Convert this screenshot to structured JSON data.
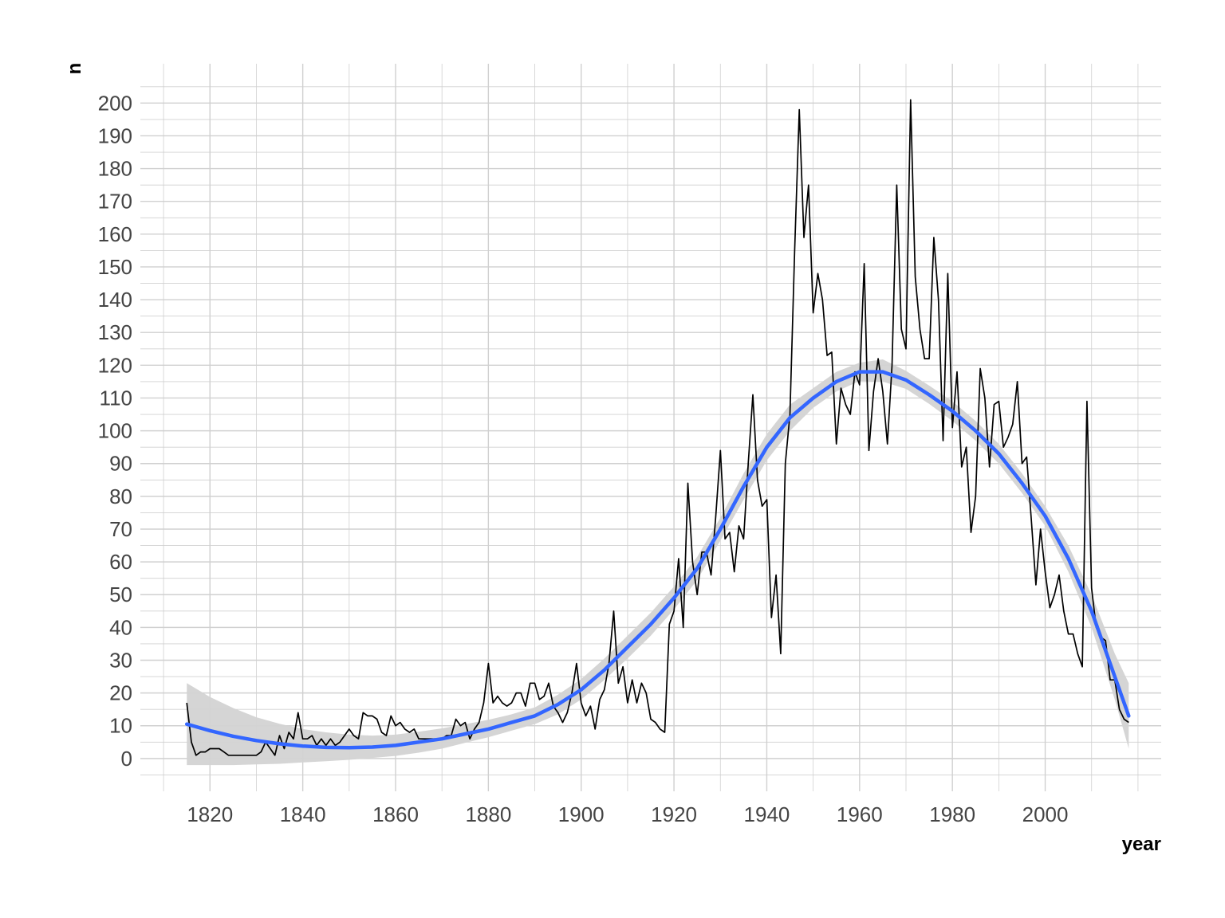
{
  "chart_data": {
    "type": "line",
    "title": "",
    "xlabel": "year",
    "ylabel": "n",
    "xlim": [
      1805,
      2025
    ],
    "ylim": [
      -10,
      212
    ],
    "x_ticks": [
      1820,
      1840,
      1860,
      1880,
      1900,
      1920,
      1940,
      1960,
      1980,
      2000
    ],
    "x_minor_ticks": [
      1810,
      1830,
      1850,
      1870,
      1890,
      1910,
      1930,
      1950,
      1970,
      1990,
      2010,
      2020
    ],
    "y_ticks": [
      0,
      10,
      20,
      30,
      40,
      50,
      60,
      70,
      80,
      90,
      100,
      110,
      120,
      130,
      140,
      150,
      160,
      170,
      180,
      190,
      200
    ],
    "y_minor_ticks": [
      -5,
      5,
      15,
      25,
      35,
      45,
      55,
      65,
      75,
      85,
      95,
      105,
      115,
      125,
      135,
      145,
      155,
      165,
      175,
      185,
      195,
      205
    ],
    "grid": true,
    "legend": "none",
    "colors": {
      "series": "#000000",
      "smooth": "#3366FF",
      "band": "#d3d3d3",
      "grid": "#d0d0d0"
    },
    "series": [
      {
        "x": [
          1815,
          1816,
          1817,
          1818,
          1819,
          1820,
          1821,
          1822,
          1823,
          1824,
          1825,
          1826,
          1827,
          1828,
          1829,
          1830,
          1831,
          1832,
          1833,
          1834,
          1835,
          1836,
          1837,
          1838,
          1839,
          1840,
          1841,
          1842,
          1843,
          1844,
          1845,
          1846,
          1847,
          1848,
          1849,
          1850,
          1851,
          1852,
          1853,
          1854,
          1855,
          1856,
          1857,
          1858,
          1859,
          1860,
          1861,
          1862,
          1863,
          1864,
          1865,
          1866,
          1867,
          1868,
          1869,
          1870,
          1871,
          1872,
          1873,
          1874,
          1875,
          1876,
          1877,
          1878,
          1879,
          1880,
          1881,
          1882,
          1883,
          1884,
          1885,
          1886,
          1887,
          1888,
          1889,
          1890,
          1891,
          1892,
          1893,
          1894,
          1895,
          1896,
          1897,
          1898,
          1899,
          1900,
          1901,
          1902,
          1903,
          1904,
          1905,
          1906,
          1907,
          1908,
          1909,
          1910,
          1911,
          1912,
          1913,
          1914,
          1915,
          1916,
          1917,
          1918,
          1919,
          1920,
          1921,
          1922,
          1923,
          1924,
          1925,
          1926,
          1927,
          1928,
          1929,
          1930,
          1931,
          1932,
          1933,
          1934,
          1935,
          1936,
          1937,
          1938,
          1939,
          1940,
          1941,
          1942,
          1943,
          1944,
          1945,
          1946,
          1947,
          1948,
          1949,
          1950,
          1951,
          1952,
          1953,
          1954,
          1955,
          1956,
          1957,
          1958,
          1959,
          1960,
          1961,
          1962,
          1963,
          1964,
          1965,
          1966,
          1967,
          1968,
          1969,
          1970,
          1971,
          1972,
          1973,
          1974,
          1975,
          1976,
          1977,
          1978,
          1979,
          1980,
          1981,
          1982,
          1983,
          1984,
          1985,
          1986,
          1987,
          1988,
          1989,
          1990,
          1991,
          1992,
          1993,
          1994,
          1995,
          1996,
          1997,
          1998,
          1999,
          2000,
          2001,
          2002,
          2003,
          2004,
          2005,
          2006,
          2007,
          2008,
          2009,
          2010,
          2011,
          2012,
          2013,
          2014,
          2015,
          2016,
          2017,
          2018
        ],
        "y": [
          17,
          5,
          1,
          2,
          2,
          3,
          3,
          3,
          2,
          1,
          1,
          1,
          1,
          1,
          1,
          1,
          2,
          5,
          3,
          1,
          7,
          3,
          8,
          6,
          14,
          6,
          6,
          7,
          4,
          6,
          4,
          6,
          4,
          5,
          7,
          9,
          7,
          6,
          14,
          13,
          13,
          12,
          8,
          7,
          13,
          10,
          11,
          9,
          8,
          9,
          6,
          6,
          6,
          6,
          6,
          6,
          7,
          7,
          12,
          10,
          11,
          6,
          9,
          11,
          17,
          29,
          17,
          19,
          17,
          16,
          17,
          20,
          20,
          16,
          23,
          23,
          18,
          19,
          23,
          16,
          14,
          11,
          14,
          20,
          29,
          17,
          13,
          16,
          9,
          18,
          21,
          29,
          45,
          23,
          28,
          17,
          24,
          17,
          23,
          20,
          12,
          11,
          9,
          8,
          41,
          45,
          61,
          40,
          84,
          60,
          50,
          63,
          63,
          56,
          74,
          94,
          67,
          69,
          57,
          71,
          67,
          90,
          111,
          85,
          77,
          79,
          43,
          56,
          32,
          90,
          105,
          155,
          198,
          159,
          175,
          136,
          148,
          140,
          123,
          124,
          96,
          113,
          108,
          105,
          118,
          114,
          151,
          94,
          112,
          122,
          112,
          96,
          120,
          175,
          131,
          125,
          201,
          147,
          131,
          122,
          122,
          159,
          140,
          97,
          148,
          101,
          118,
          89,
          95,
          69,
          80,
          119,
          110,
          89,
          108,
          109,
          95,
          98,
          102,
          115,
          90,
          92,
          73,
          53,
          70,
          57,
          46,
          50,
          56,
          45,
          38,
          38,
          32,
          28,
          109,
          52,
          40,
          37,
          36,
          24,
          24,
          15,
          12,
          11
        ]
      }
    ],
    "smooth": {
      "method": "loess",
      "x": [
        1815,
        1820,
        1825,
        1830,
        1835,
        1840,
        1845,
        1850,
        1855,
        1860,
        1865,
        1870,
        1875,
        1880,
        1885,
        1890,
        1895,
        1900,
        1905,
        1910,
        1915,
        1920,
        1925,
        1930,
        1935,
        1940,
        1945,
        1950,
        1955,
        1960,
        1965,
        1970,
        1975,
        1980,
        1985,
        1990,
        1995,
        2000,
        2005,
        2010,
        2015,
        2018
      ],
      "y": [
        10.5,
        8.5,
        6.8,
        5.5,
        4.5,
        3.8,
        3.4,
        3.3,
        3.5,
        4,
        5,
        6,
        7.5,
        9,
        11,
        13,
        16.5,
        21,
        27,
        34,
        41,
        49,
        58,
        70,
        83,
        95,
        104,
        110,
        115,
        118,
        118,
        115.5,
        111,
        106,
        100,
        93,
        84,
        74,
        61,
        45,
        25,
        13
      ],
      "lower": [
        -2,
        -2,
        -2,
        -1.8,
        -1.6,
        -1.2,
        -0.8,
        -0.4,
        0.2,
        0.8,
        1.8,
        3,
        4.8,
        6.5,
        8.5,
        10.5,
        13.5,
        18,
        24,
        30.5,
        37.5,
        45.5,
        54.5,
        66.5,
        79,
        91,
        100,
        107,
        112,
        115.2,
        115,
        112.8,
        108.2,
        103,
        97,
        90,
        81,
        71,
        57,
        40,
        18,
        3
      ],
      "upper": [
        23,
        18.8,
        15.4,
        12.6,
        10.6,
        9,
        8,
        7.3,
        7,
        7.3,
        8.2,
        9.2,
        10.5,
        11.8,
        13.5,
        15.6,
        19.5,
        24.2,
        30.5,
        37.5,
        44.5,
        52.5,
        61.5,
        73.5,
        87,
        99,
        108,
        113,
        118,
        120.8,
        121.8,
        118.3,
        113.8,
        109,
        103,
        96,
        87,
        77,
        65,
        50,
        32,
        23
      ]
    }
  }
}
